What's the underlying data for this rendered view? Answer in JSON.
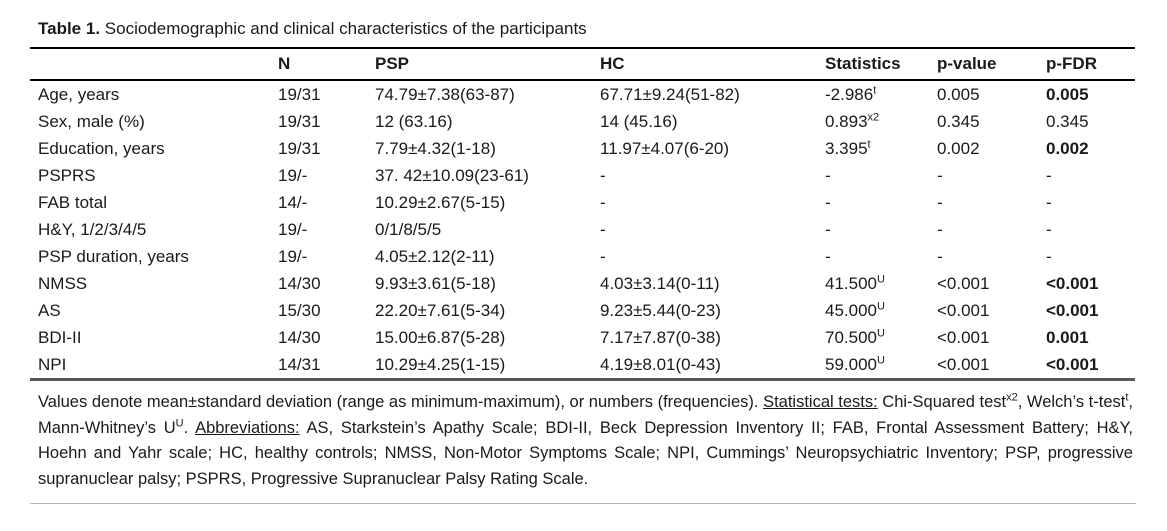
{
  "title": {
    "label": "Table 1.",
    "text": " Sociodemographic and clinical characteristics of the participants"
  },
  "colors": {
    "text": "#1a1a1a",
    "rule_top": "#000000",
    "rule_header": "#000000",
    "rule_table_bottom": "#595959",
    "rule_page_bottom": "#b3b3b3"
  },
  "table": {
    "columns": [
      "",
      "N",
      "PSP",
      "HC",
      "Statistics",
      "p-value",
      "p-FDR"
    ],
    "rows": [
      {
        "label": "Age, years",
        "n": "19/31",
        "psp": "74.79±7.38(63-87)",
        "hc": "67.71±9.24(51-82)",
        "stat": "-2.986^t",
        "p": "0.005",
        "pfdr": "0.005",
        "pfdr_bold": true
      },
      {
        "label": "Sex, male (%)",
        "n": "19/31",
        "psp": "12 (63.16)",
        "hc": "14 (45.16)",
        "stat": "0.893^x2",
        "p": "0.345",
        "pfdr": "0.345",
        "pfdr_bold": false
      },
      {
        "label": "Education, years",
        "n": "19/31",
        "psp": "7.79±4.32(1-18)",
        "hc": "11.97±4.07(6-20)",
        "stat": "3.395^t",
        "p": "0.002",
        "pfdr": "0.002",
        "pfdr_bold": true
      },
      {
        "label": "PSPRS",
        "n": "19/-",
        "psp": "37. 42±10.09(23-61)",
        "hc": "-",
        "stat": "-",
        "p": "-",
        "pfdr": "-",
        "pfdr_bold": false
      },
      {
        "label": "FAB total",
        "n": "14/-",
        "psp": "10.29±2.67(5-15)",
        "hc": "-",
        "stat": "-",
        "p": "-",
        "pfdr": "-",
        "pfdr_bold": false
      },
      {
        "label": "H&Y, 1/2/3/4/5",
        "n": "19/-",
        "psp": "0/1/8/5/5",
        "hc": "-",
        "stat": "-",
        "p": "-",
        "pfdr": "-",
        "pfdr_bold": false
      },
      {
        "label": "PSP duration, years",
        "n": "19/-",
        "psp": "4.05±2.12(2-11)",
        "hc": "-",
        "stat": "-",
        "p": "-",
        "pfdr": "-",
        "pfdr_bold": false
      },
      {
        "label": "NMSS",
        "n": "14/30",
        "psp": "9.93±3.61(5-18)",
        "hc": "4.03±3.14(0-11)",
        "stat": "41.500^U",
        "p": "<0.001",
        "pfdr": "<0.001",
        "pfdr_bold": true
      },
      {
        "label": "AS",
        "n": "15/30",
        "psp": "22.20±7.61(5-34)",
        "hc": "9.23±5.44(0-23)",
        "stat": "45.000^U",
        "p": "<0.001",
        "pfdr": "<0.001",
        "pfdr_bold": true
      },
      {
        "label": "BDI-II",
        "n": "14/30",
        "psp": "15.00±6.87(5-28)",
        "hc": "7.17±7.87(0-38)",
        "stat": "70.500^U",
        "p": "<0.001",
        "pfdr": "0.001",
        "pfdr_bold": true
      },
      {
        "label": "NPI",
        "n": "14/31",
        "psp": "10.29±4.25(1-15)",
        "hc": "4.19±8.01(0-43)",
        "stat": "59.000^U",
        "p": "<0.001",
        "pfdr": "<0.001",
        "pfdr_bold": true
      }
    ]
  },
  "footnote": {
    "segments": [
      {
        "text": "Values denote mean±standard deviation (range as minimum-maximum), or numbers (frequencies). "
      },
      {
        "text": "Statistical tests:",
        "u": true
      },
      {
        "text": " Chi-Squared test"
      },
      {
        "text": "x2",
        "sup": true
      },
      {
        "text": ", Welch’s t-test"
      },
      {
        "text": "t",
        "sup": true
      },
      {
        "text": ", Mann-Whitney’s U"
      },
      {
        "text": "U",
        "sup": true
      },
      {
        "text": ". "
      },
      {
        "text": "Abbreviations:",
        "u": true
      },
      {
        "text": " AS, Starkstein’s Apathy Scale; BDI-II, Beck Depression Inventory II; FAB, Frontal Assessment Battery; H&Y, Hoehn and Yahr scale; HC, healthy controls; NMSS, Non-Motor Symptoms Scale; NPI, Cummings’ Neuropsychiatric Inventory; PSP, progressive supranuclear palsy; PSPRS, Progressive Supranuclear Palsy Rating Scale."
      }
    ]
  }
}
